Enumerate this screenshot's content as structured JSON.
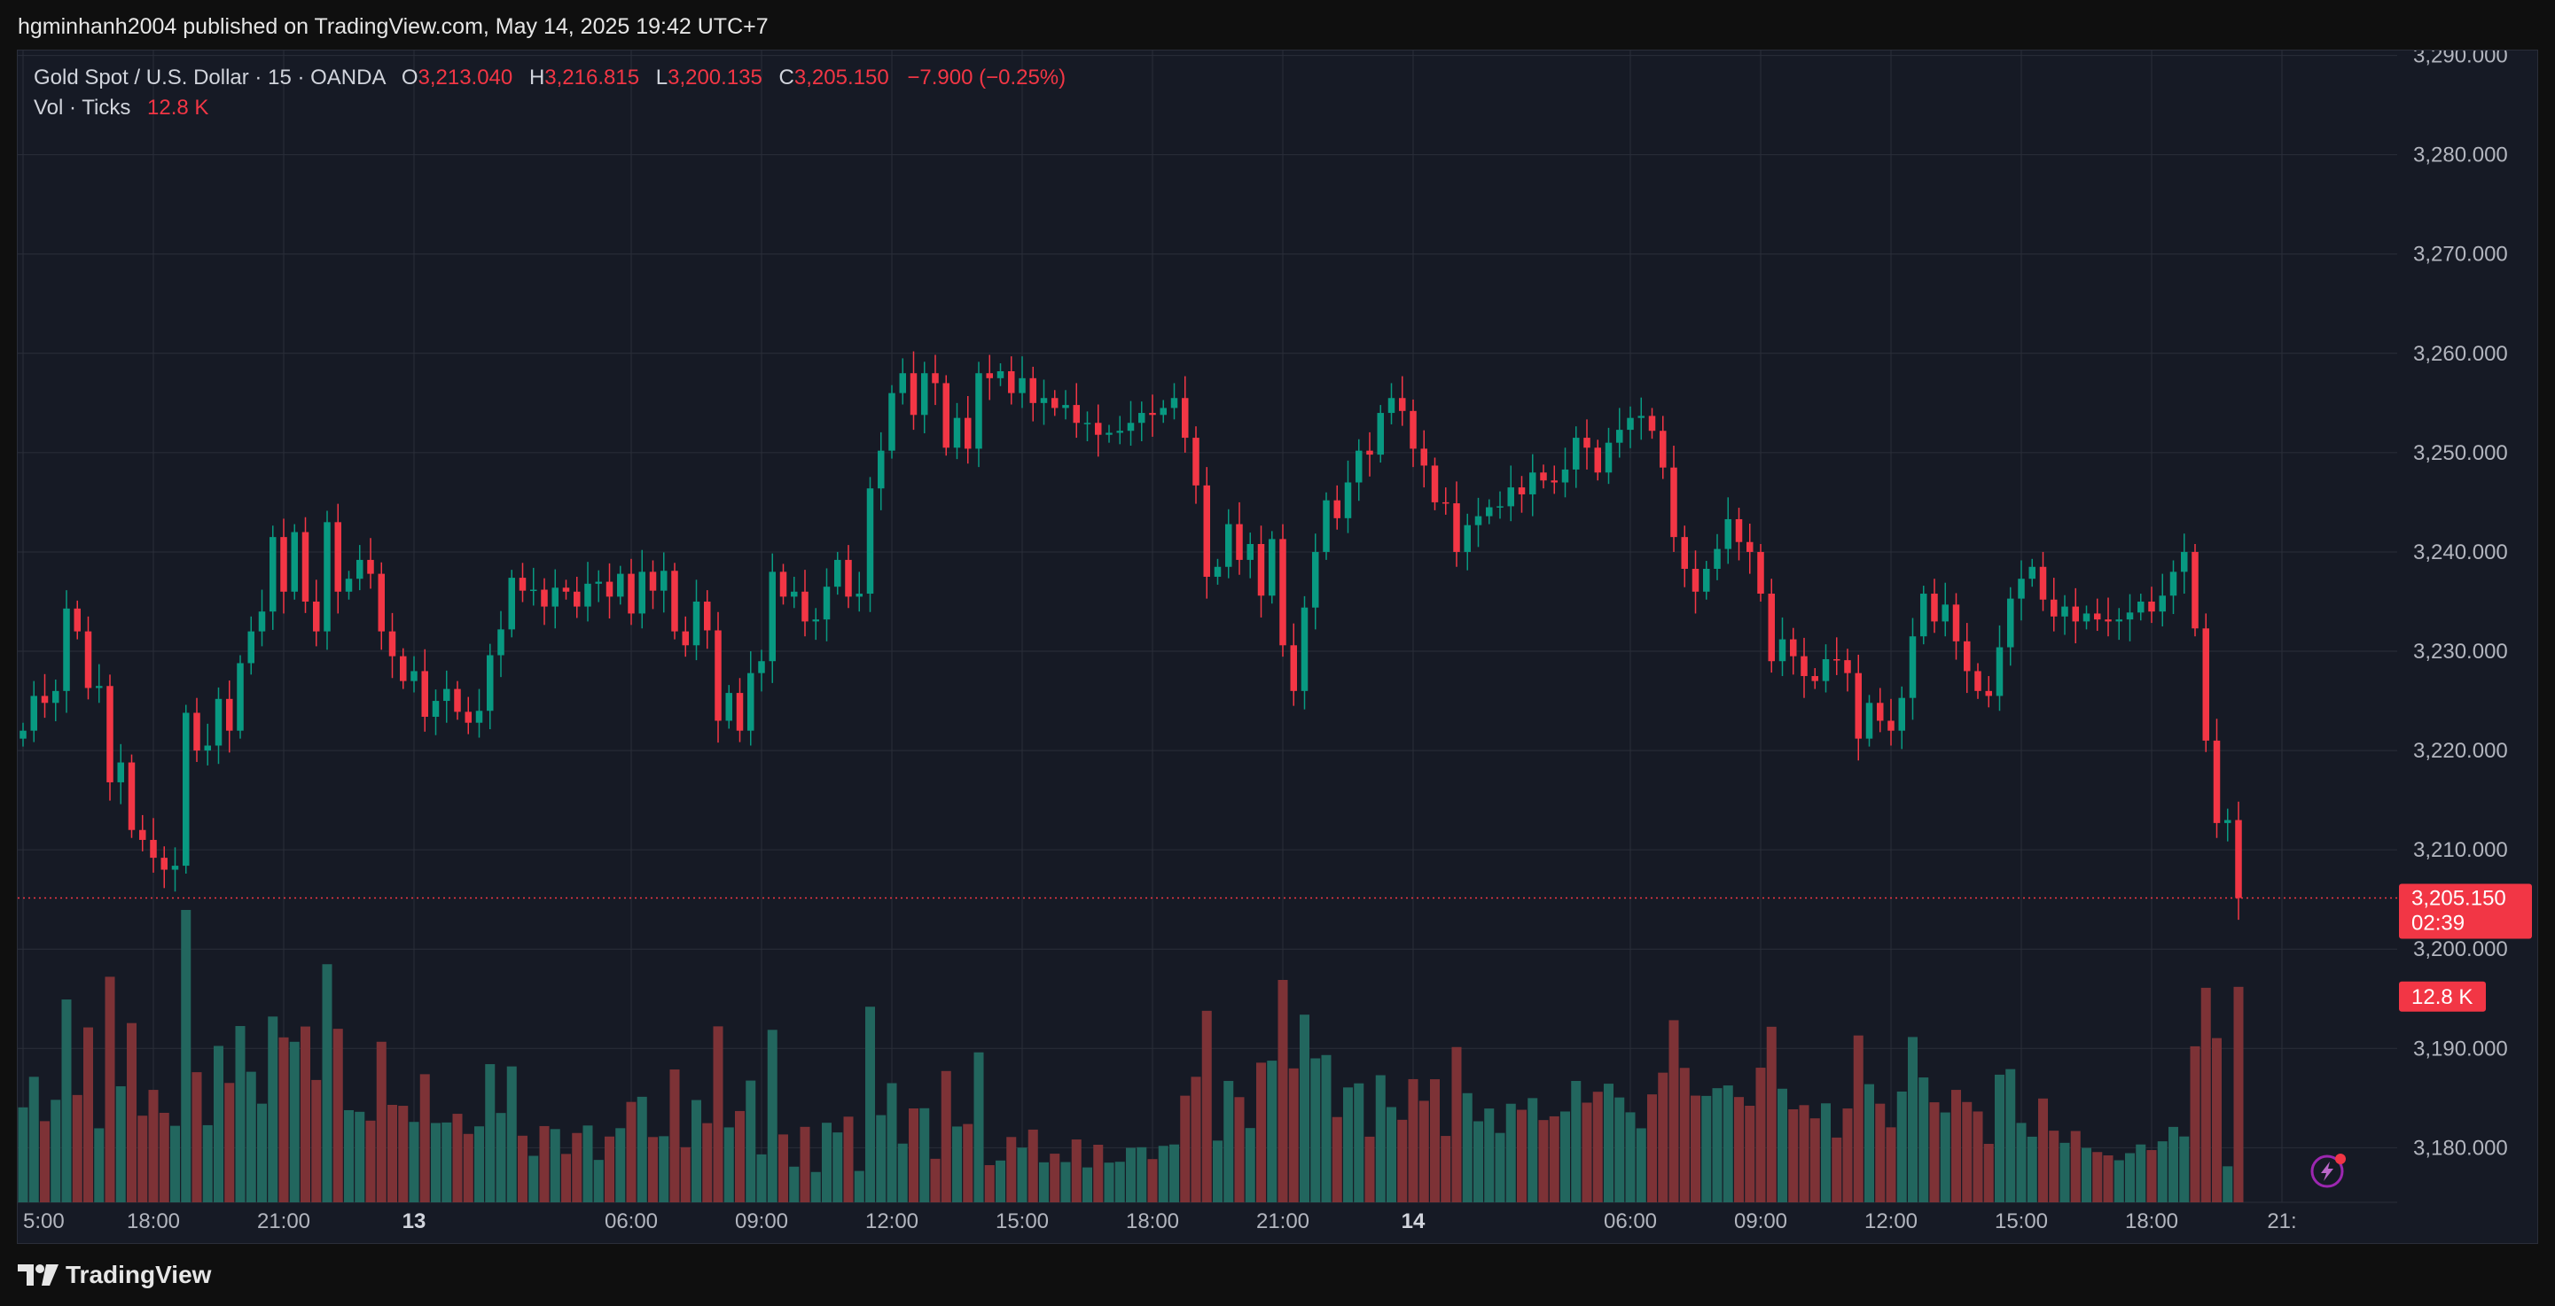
{
  "header": {
    "published": "hgminhanh2004 published on TradingView.com, May 14, 2025 19:42 UTC+7"
  },
  "legend": {
    "symbol": "Gold Spot / U.S. Dollar · 15 · OANDA",
    "o_label": "O",
    "o_value": "3,213.040",
    "h_label": "H",
    "h_value": "3,216.815",
    "l_label": "L",
    "l_value": "3,200.135",
    "c_label": "C",
    "c_value": "3,205.150",
    "change": "−7.900 (−0.25%)",
    "vol_label": "Vol · Ticks",
    "vol_value": "12.8 K"
  },
  "price_badge": {
    "price": "3,205.150",
    "countdown": "02:39",
    "color": "#f23645"
  },
  "volume_badge": {
    "value": "12.8 K",
    "color": "#f23645"
  },
  "footer": {
    "brand": "TradingView"
  },
  "colors": {
    "up": "#089981",
    "down": "#f23645",
    "vol_up": "#22665e",
    "vol_down": "#7d3236",
    "background": "#161a25",
    "grid": "#2a2e39"
  },
  "icons": {
    "logo": "tradingview-logo-icon",
    "alert": "lightning-alert-icon"
  },
  "chart_data": {
    "type": "candlestick",
    "title": "Gold Spot / U.S. Dollar · 15 · OANDA",
    "yaxis": {
      "ticks": [
        3180,
        3190,
        3200,
        3210,
        3220,
        3230,
        3240,
        3250,
        3260,
        3270,
        3280,
        3290
      ],
      "tick_labels": [
        "3,180.000",
        "3,190.000",
        "3,200.000",
        "3,210.000",
        "3,220.000",
        "3,230.000",
        "3,240.000",
        "3,250.000",
        "3,260.000",
        "3,270.000",
        "3,280.000",
        "3,290.000"
      ],
      "ylim": [
        3174.5,
        3290.5
      ],
      "last_price": 3205.15
    },
    "xaxis": {
      "tick_labels": [
        "5:00",
        "18:00",
        "21:00",
        "13",
        "06:00",
        "09:00",
        "12:00",
        "15:00",
        "18:00",
        "21:00",
        "14",
        "06:00",
        "09:00",
        "12:00",
        "15:00",
        "18:00",
        "21:"
      ],
      "tick_bars": [
        0,
        12,
        24,
        36,
        56,
        68,
        80,
        92,
        104,
        116,
        128,
        148,
        160,
        172,
        184,
        196,
        208
      ],
      "bold_labels": [
        "13",
        "14"
      ]
    },
    "grid": true,
    "candle_closes": [
      3222.0,
      3225.5,
      3224.8,
      3226.0,
      3234.3,
      3232.0,
      3226.3,
      3226.5,
      3216.8,
      3218.8,
      3212.0,
      3211.0,
      3209.2,
      3208.0,
      3208.4,
      3223.8,
      3220.0,
      3220.5,
      3225.2,
      3222.0,
      3228.8,
      3232.0,
      3234.0,
      3241.5,
      3236.0,
      3242.0,
      3235.0,
      3232.0,
      3243.0,
      3236.0,
      3237.3,
      3239.2,
      3237.8,
      3232.0,
      3229.5,
      3227.0,
      3228.0,
      3223.4,
      3225.0,
      3226.2,
      3223.9,
      3222.8,
      3224.0,
      3229.6,
      3232.2,
      3237.4,
      3236.1,
      3236.2,
      3234.5,
      3236.4,
      3236.0,
      3234.5,
      3236.8,
      3237.0,
      3235.5,
      3237.8,
      3233.8,
      3238.0,
      3236.1,
      3238.1,
      3232.0,
      3230.6,
      3235.0,
      3232.1,
      3223.0,
      3225.8,
      3222.0,
      3227.8,
      3229.0,
      3238.0,
      3235.5,
      3236.0,
      3233.0,
      3233.2,
      3236.5,
      3239.2,
      3235.5,
      3235.8,
      3246.4,
      3250.2,
      3256.0,
      3258.0,
      3253.8,
      3258.0,
      3257.0,
      3250.5,
      3253.5,
      3250.4,
      3258.0,
      3257.5,
      3258.2,
      3256.0,
      3257.5,
      3255.0,
      3255.5,
      3254.5,
      3254.8,
      3253.0,
      3253.0,
      3251.8,
      3252.0,
      3252.2,
      3253.0,
      3254.0,
      3253.8,
      3254.5,
      3255.5,
      3251.5,
      3246.7,
      3237.5,
      3238.5,
      3242.8,
      3239.2,
      3240.8,
      3235.6,
      3241.3,
      3230.6,
      3226.0,
      3234.4,
      3240.0,
      3245.2,
      3243.4,
      3247.0,
      3250.2,
      3249.8,
      3254.0,
      3255.5,
      3254.2,
      3250.4,
      3248.7,
      3245.0,
      3244.9,
      3240.0,
      3242.7,
      3243.6,
      3244.5,
      3244.6,
      3246.5,
      3245.8,
      3248.0,
      3247.2,
      3247.0,
      3248.3,
      3251.5,
      3250.5,
      3248.0,
      3251.0,
      3252.3,
      3253.5,
      3253.7,
      3252.2,
      3248.5,
      3241.5,
      3238.3,
      3236.0,
      3238.3,
      3240.3,
      3243.3,
      3241.0,
      3240.0,
      3235.8,
      3229.0,
      3231.2,
      3229.5,
      3227.5,
      3227.0,
      3229.2,
      3229.1,
      3227.8,
      3221.2,
      3224.8,
      3223.0,
      3222.0,
      3225.3,
      3231.5,
      3235.8,
      3233.0,
      3234.7,
      3231.0,
      3228.0,
      3226.0,
      3225.5,
      3230.4,
      3235.3,
      3237.3,
      3238.5,
      3235.2,
      3233.5,
      3234.5,
      3233.0,
      3233.8,
      3233.2,
      3233.0,
      3233.2,
      3233.9,
      3235.0,
      3234.0,
      3235.6,
      3238.0,
      3240.0,
      3232.3,
      3221.0,
      3212.7,
      3213.0,
      3205.15
    ],
    "volume_note": "Tick volume per 15-minute bar; latest bar 12.8 K"
  }
}
